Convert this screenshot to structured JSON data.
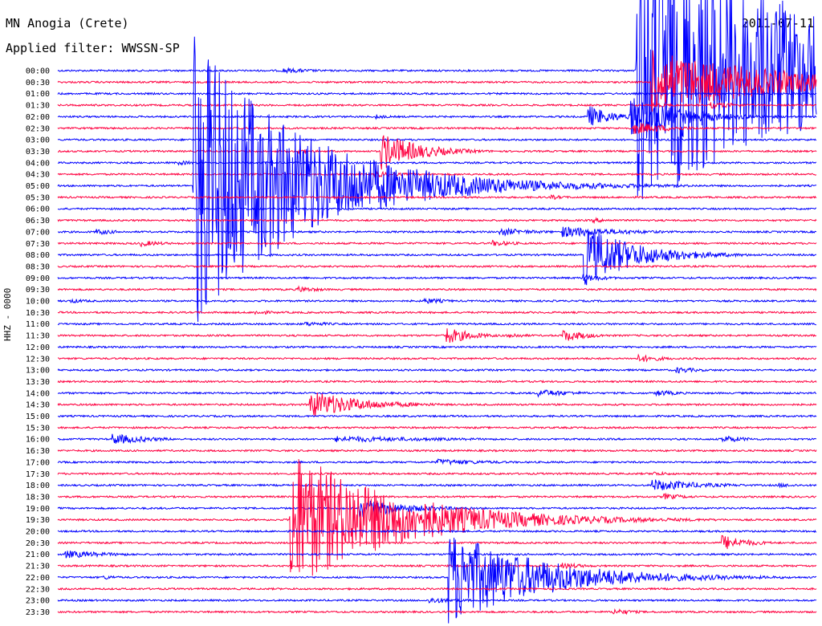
{
  "header": {
    "station": "MN Anogia (Crete)",
    "filter_label": "Applied filter: WWSSN-SP",
    "date": "2011-07-11"
  },
  "channel_label": "HHZ - 0000",
  "chart_data": {
    "type": "line",
    "title": "MN Anogia (Crete)",
    "subtitle": "Applied filter: WWSSN-SP",
    "date": "2011-07-11",
    "ylabel": "HHZ - 0000",
    "xlabel": "",
    "minutes_per_line": 30,
    "line_colors": [
      "#0000ff",
      "#ff0040"
    ],
    "row_labels": [
      "00:00",
      "00:30",
      "01:00",
      "01:30",
      "02:00",
      "02:30",
      "03:00",
      "03:30",
      "04:00",
      "04:30",
      "05:00",
      "05:30",
      "06:00",
      "06:30",
      "07:00",
      "07:30",
      "08:00",
      "08:30",
      "09:00",
      "09:30",
      "10:00",
      "10:30",
      "11:00",
      "11:30",
      "12:00",
      "12:30",
      "13:00",
      "13:30",
      "14:00",
      "14:30",
      "15:00",
      "15:30",
      "16:00",
      "16:30",
      "17:00",
      "17:30",
      "18:00",
      "18:30",
      "19:00",
      "19:30",
      "20:00",
      "20:30",
      "21:00",
      "21:30",
      "22:00",
      "22:30",
      "23:00",
      "23:30"
    ],
    "events": [
      {
        "row": 0,
        "minute": 8.9,
        "amp": 3.5,
        "dur": 1.5
      },
      {
        "row": 0,
        "minute": 22.9,
        "amp": 180,
        "dur": 8
      },
      {
        "row": 1,
        "minute": 23.5,
        "amp": 40,
        "dur": 5
      },
      {
        "row": 3,
        "minute": 25.8,
        "amp": 4,
        "dur": 1.5
      },
      {
        "row": 3,
        "minute": 23.6,
        "amp": 3,
        "dur": 1
      },
      {
        "row": 4,
        "minute": 12.6,
        "amp": 3,
        "dur": 0.6
      },
      {
        "row": 4,
        "minute": 21.0,
        "amp": 14,
        "dur": 1
      },
      {
        "row": 4,
        "minute": 22.7,
        "amp": 26,
        "dur": 2
      },
      {
        "row": 5,
        "minute": 22.8,
        "amp": 8,
        "dur": 1.5
      },
      {
        "row": 7,
        "minute": 12.8,
        "amp": 24,
        "dur": 1.5
      },
      {
        "row": 7,
        "minute": 9.5,
        "amp": 3,
        "dur": 0.8
      },
      {
        "row": 8,
        "minute": 4.8,
        "amp": 3,
        "dur": 0.8
      },
      {
        "row": 9,
        "minute": 12.5,
        "amp": 4,
        "dur": 1.2
      },
      {
        "row": 10,
        "minute": 5.4,
        "amp": 190,
        "dur": 4
      },
      {
        "row": 11,
        "minute": 19.5,
        "amp": 3,
        "dur": 0.8
      },
      {
        "row": 13,
        "minute": 21.2,
        "amp": 3,
        "dur": 1
      },
      {
        "row": 14,
        "minute": 20.0,
        "amp": 7,
        "dur": 2.5
      },
      {
        "row": 14,
        "minute": 17.5,
        "amp": 5,
        "dur": 1.5
      },
      {
        "row": 14,
        "minute": 1.5,
        "amp": 4,
        "dur": 1
      },
      {
        "row": 15,
        "minute": 3.3,
        "amp": 4,
        "dur": 1
      },
      {
        "row": 15,
        "minute": 17.2,
        "amp": 4,
        "dur": 1
      },
      {
        "row": 16,
        "minute": 20.8,
        "amp": 40,
        "dur": 2
      },
      {
        "row": 18,
        "minute": 20.8,
        "amp": 5,
        "dur": 1
      },
      {
        "row": 19,
        "minute": 9.5,
        "amp": 4,
        "dur": 1
      },
      {
        "row": 20,
        "minute": 14.5,
        "amp": 4,
        "dur": 1
      },
      {
        "row": 20,
        "minute": 0.5,
        "amp": 3,
        "dur": 1
      },
      {
        "row": 21,
        "minute": 7.8,
        "amp": 3,
        "dur": 1
      },
      {
        "row": 22,
        "minute": 9.8,
        "amp": 3,
        "dur": 1.5
      },
      {
        "row": 23,
        "minute": 15.3,
        "amp": 12,
        "dur": 1
      },
      {
        "row": 23,
        "minute": 20.0,
        "amp": 8,
        "dur": 1
      },
      {
        "row": 23,
        "minute": 17.8,
        "amp": 4,
        "dur": 0.8
      },
      {
        "row": 25,
        "minute": 23.0,
        "amp": 5,
        "dur": 1
      },
      {
        "row": 26,
        "minute": 24.5,
        "amp": 4,
        "dur": 1
      },
      {
        "row": 28,
        "minute": 19.0,
        "amp": 5,
        "dur": 1.5
      },
      {
        "row": 28,
        "minute": 23.7,
        "amp": 4,
        "dur": 1
      },
      {
        "row": 29,
        "minute": 10.0,
        "amp": 18,
        "dur": 2
      },
      {
        "row": 32,
        "minute": 2.2,
        "amp": 7,
        "dur": 1.5
      },
      {
        "row": 32,
        "minute": 11.0,
        "amp": 4,
        "dur": 5
      },
      {
        "row": 32,
        "minute": 26.3,
        "amp": 5,
        "dur": 1
      },
      {
        "row": 34,
        "minute": 15.0,
        "amp": 4,
        "dur": 2.5
      },
      {
        "row": 35,
        "minute": 23.5,
        "amp": 3,
        "dur": 1
      },
      {
        "row": 36,
        "minute": 23.5,
        "amp": 8,
        "dur": 2
      },
      {
        "row": 36,
        "minute": 28.5,
        "amp": 3,
        "dur": 1
      },
      {
        "row": 37,
        "minute": 24.0,
        "amp": 4,
        "dur": 1
      },
      {
        "row": 38,
        "minute": 11.9,
        "amp": 12,
        "dur": 2
      },
      {
        "row": 39,
        "minute": 9.2,
        "amp": 90,
        "dur": 4
      },
      {
        "row": 41,
        "minute": 26.3,
        "amp": 10,
        "dur": 1
      },
      {
        "row": 42,
        "minute": 0.3,
        "amp": 5,
        "dur": 2
      },
      {
        "row": 43,
        "minute": 20.0,
        "amp": 4,
        "dur": 1
      },
      {
        "row": 44,
        "minute": 1.8,
        "amp": 3,
        "dur": 0.8
      },
      {
        "row": 44,
        "minute": 15.5,
        "amp": 60,
        "dur": 3.5
      },
      {
        "row": 46,
        "minute": 14.7,
        "amp": 4,
        "dur": 1.5
      },
      {
        "row": 47,
        "minute": 22.0,
        "amp": 4,
        "dur": 1
      }
    ]
  }
}
